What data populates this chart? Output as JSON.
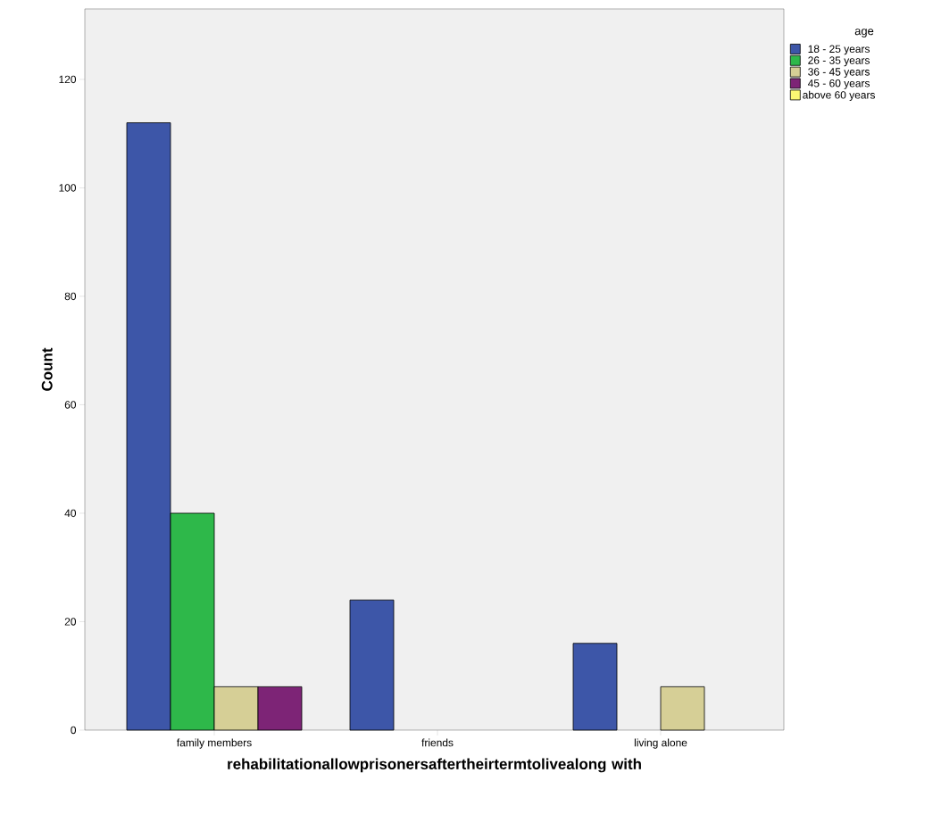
{
  "chart_data": {
    "type": "bar",
    "xlabel": "rehabilitationallowprisonersaftertheirtermtolivealong with",
    "ylabel": "Count",
    "legend_title": "age",
    "legend": "right",
    "categories": [
      "family members",
      "friends",
      "living alone"
    ],
    "series": [
      {
        "name": "18 - 25 years",
        "color": "#3d56a8",
        "values": [
          112,
          24,
          16
        ]
      },
      {
        "name": "26 - 35 years",
        "color": "#2eb84a",
        "values": [
          40,
          null,
          null
        ]
      },
      {
        "name": "36 - 45 years",
        "color": "#d6cf96",
        "values": [
          8,
          null,
          8
        ]
      },
      {
        "name": "45 - 60 years",
        "color": "#7d2476",
        "values": [
          8,
          null,
          null
        ]
      },
      {
        "name": "above 60 years",
        "color": "#fbf873",
        "values": [
          null,
          null,
          null
        ]
      }
    ],
    "ylim": [
      0,
      133
    ],
    "yticks": [
      0,
      20,
      40,
      60,
      80,
      100,
      120
    ]
  }
}
